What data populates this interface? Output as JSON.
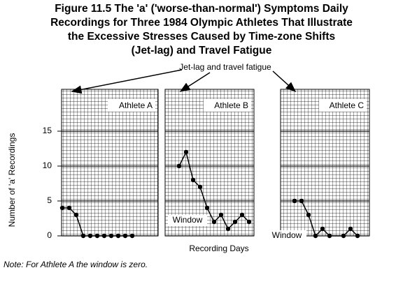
{
  "chart_data": {
    "type": "line",
    "title": [
      "Figure 11.5  The 'a' ('worse-than-normal') Symptoms Daily",
      "Recordings for Three 1984 Olympic Athletes That Illustrate",
      "the Excessive Stresses Caused by Time-zone Shifts",
      "(Jet-lag) and Travel Fatigue"
    ],
    "annotation": "Jet-lag and travel fatigue",
    "y_label": "Number of 'a' Recordings",
    "x_label": "Recording Days",
    "note": "Note: For Athlete A the window is zero.",
    "window_label": "Window",
    "ylim": [
      0,
      21
    ],
    "yticks": [
      0,
      5,
      10,
      15
    ],
    "grid": true,
    "color": "#000000",
    "series": [
      {
        "name": "Athlete A",
        "xlim": [
          -0.1,
          13.7
        ],
        "x": [
          0,
          1,
          2,
          3,
          4,
          5,
          6,
          7,
          8,
          9,
          10
        ],
        "values": [
          4,
          4,
          3,
          0,
          0,
          0,
          0,
          0,
          0,
          0,
          0
        ]
      },
      {
        "name": "Athlete B",
        "xlim": [
          0,
          12.7
        ],
        "x": [
          2,
          3,
          4,
          5,
          6,
          7,
          8,
          9,
          10,
          11,
          12
        ],
        "values": [
          10,
          12,
          8,
          7,
          4,
          2,
          3,
          1,
          2,
          3,
          2
        ]
      },
      {
        "name": "Athlete C",
        "xlim": [
          0,
          12.7
        ],
        "x": [
          2,
          3,
          4,
          5,
          6,
          7,
          9,
          10,
          11
        ],
        "values": [
          5,
          5,
          3,
          0,
          1,
          0,
          0,
          1,
          0
        ]
      }
    ]
  }
}
